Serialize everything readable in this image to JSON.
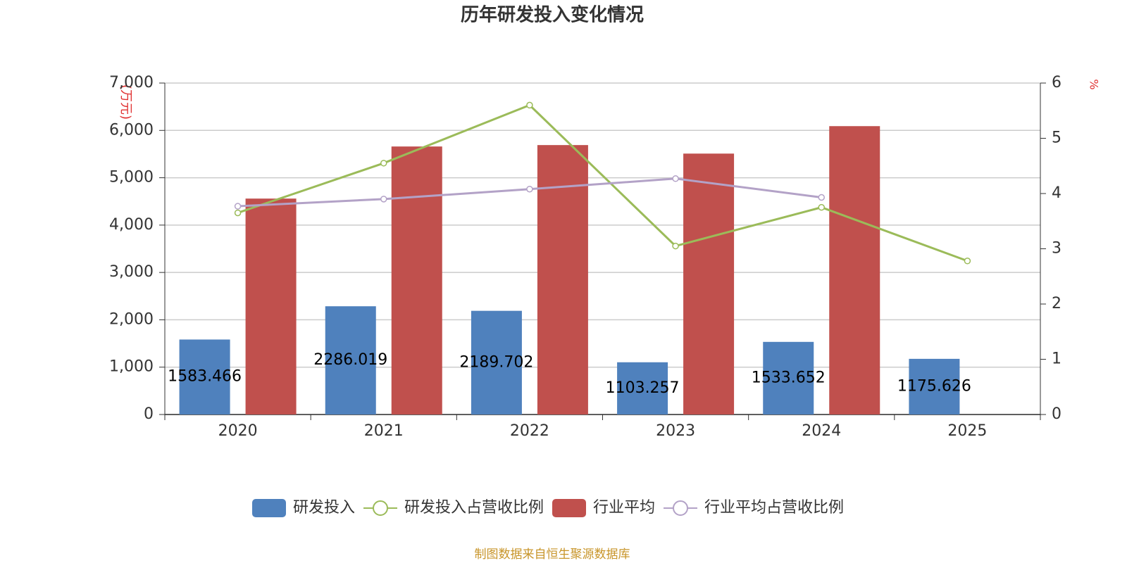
{
  "chart_data": {
    "type": "bar",
    "title": "历年研发投入变化情况",
    "categories": [
      "2020",
      "2021",
      "2022",
      "2023",
      "2024",
      "2025"
    ],
    "series": [
      {
        "name": "研发投入",
        "type": "bar",
        "color": "#4f81bd",
        "values": [
          1583.466,
          2286.019,
          2189.702,
          1103.257,
          1533.652,
          1175.626
        ]
      },
      {
        "name": "研发投入占营收比例",
        "type": "line",
        "axis": "y2",
        "color": "#9bbb59",
        "values": [
          3.65,
          4.55,
          5.6,
          3.05,
          3.75,
          2.78
        ]
      },
      {
        "name": "行业平均",
        "type": "bar",
        "color": "#c0504d",
        "values": [
          4560,
          5660,
          5690,
          5510,
          6090,
          null
        ]
      },
      {
        "name": "行业平均占营收比例",
        "type": "line",
        "axis": "y2",
        "color": "#b3a2c7",
        "values": [
          3.77,
          3.9,
          4.08,
          4.27,
          3.93,
          null
        ]
      }
    ],
    "ylabel": "(万元)",
    "y2label": "%",
    "ylim": [
      0,
      7000
    ],
    "yticks": [
      0,
      {
        "value": 1000,
        "label": "1,000"
      },
      {
        "value": 2000,
        "label": "2,000"
      },
      {
        "value": 3000,
        "label": "3,000"
      },
      {
        "value": 4000,
        "label": "4,000"
      },
      {
        "value": 5000,
        "label": "5,000"
      },
      {
        "value": 6000,
        "label": "6,000"
      },
      {
        "value": 7000,
        "label": "7,000"
      }
    ],
    "y2lim": [
      0,
      6
    ],
    "y2ticks": [
      0,
      1,
      2,
      3,
      4,
      5,
      6
    ],
    "grid": true,
    "legend": "bottom",
    "source": "制图数据来自恒生聚源数据库"
  }
}
